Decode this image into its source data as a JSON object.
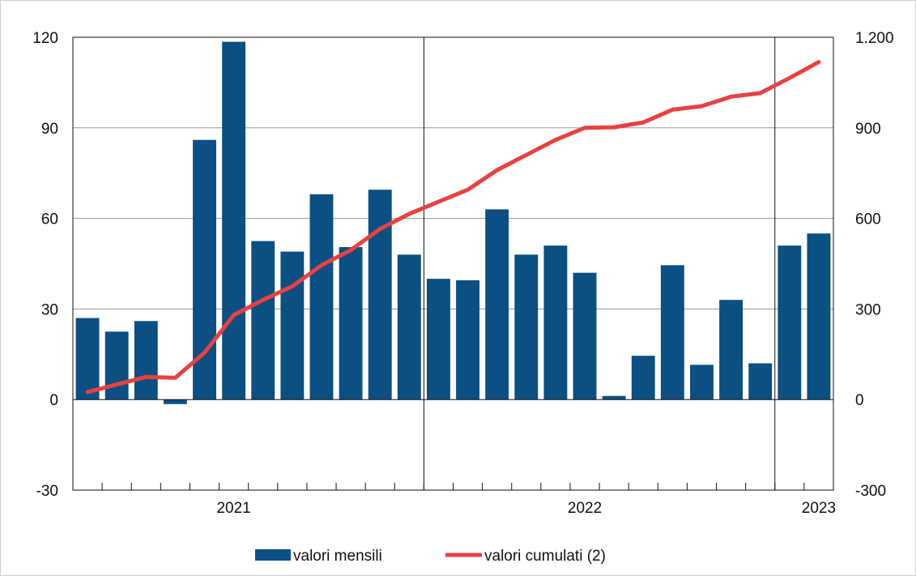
{
  "chart_data": {
    "type": "bar",
    "months": [
      "2020-07",
      "2020-08",
      "2020-09",
      "2020-10",
      "2020-11",
      "2020-12",
      "2021-01",
      "2021-02",
      "2021-03",
      "2021-04",
      "2021-05",
      "2021-06",
      "2021-07",
      "2021-08",
      "2021-09",
      "2021-10",
      "2021-11",
      "2021-12",
      "2022-01",
      "2022-02",
      "2022-03",
      "2022-04",
      "2022-05",
      "2022-06",
      "2022-07",
      "2022-08"
    ],
    "year_labels": [
      {
        "label": "2021",
        "month": "2020-12"
      },
      {
        "label": "2022",
        "month": "2021-12"
      },
      {
        "label": "2023",
        "month": "2022-08"
      }
    ],
    "year_boundaries": [
      "2021-06",
      "2022-06"
    ],
    "series": [
      {
        "name": "valori mensili",
        "type": "bar",
        "axis": "left",
        "color": "#0b4f83",
        "values": [
          27,
          22.5,
          26,
          -1.5,
          86,
          118.5,
          52.5,
          49,
          68,
          50.5,
          69.5,
          48,
          40,
          39.5,
          63,
          48,
          51,
          42,
          1.2,
          14.5,
          44.5,
          11.5,
          33,
          12,
          51,
          55
        ]
      },
      {
        "name": "valori cumulati (2)",
        "type": "line",
        "axis": "right",
        "color": "#e8413f",
        "values": [
          25,
          50,
          75,
          72,
          155,
          280,
          330,
          375,
          445,
          495,
          565,
          615,
          655,
          695,
          760,
          810,
          860,
          900,
          902,
          918,
          960,
          972,
          1003,
          1015,
          1065,
          1118
        ]
      }
    ],
    "y_left": {
      "min": -30,
      "max": 120,
      "ticks": [
        -30,
        0,
        30,
        60,
        90,
        120
      ],
      "tick_labels": [
        "-30",
        "0",
        "30",
        "60",
        "90",
        "120"
      ]
    },
    "y_right": {
      "min": -300,
      "max": 1200,
      "ticks": [
        -300,
        0,
        300,
        600,
        900,
        1200
      ],
      "tick_labels": [
        "-300",
        "0",
        "300",
        "600",
        "900",
        "1.200"
      ]
    },
    "grid": true,
    "legend_position": "bottom"
  }
}
